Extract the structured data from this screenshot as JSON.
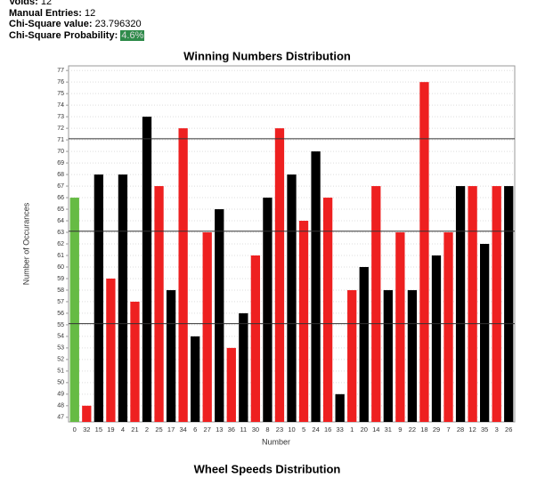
{
  "stats": [
    {
      "label": "Voids:",
      "value": "12"
    },
    {
      "label": "Manual Entries:",
      "value": "12"
    },
    {
      "label": "Chi-Square value:",
      "value": "23.796320"
    },
    {
      "label": "Chi-Square Probability:",
      "value": "4.6%"
    }
  ],
  "chart_data": {
    "type": "bar",
    "title": "Winning Numbers Distribution",
    "x_label": "Number",
    "y_label": "Number of Occurances",
    "categories": [
      "0",
      "32",
      "15",
      "19",
      "4",
      "21",
      "2",
      "25",
      "17",
      "34",
      "6",
      "27",
      "13",
      "36",
      "11",
      "30",
      "8",
      "23",
      "10",
      "5",
      "24",
      "16",
      "33",
      "1",
      "20",
      "14",
      "31",
      "9",
      "22",
      "18",
      "29",
      "7",
      "28",
      "12",
      "35",
      "3",
      "26"
    ],
    "values": [
      66,
      48,
      68,
      59,
      68,
      57,
      73,
      67,
      58,
      72,
      54,
      63,
      65,
      53,
      56,
      61,
      66,
      72,
      68,
      64,
      70,
      66,
      49,
      58,
      60,
      67,
      58,
      63,
      58,
      76,
      61,
      63,
      67,
      67,
      62,
      67,
      67
    ],
    "colors": [
      "#66bb44",
      "#ee2020",
      "#000000",
      "#ee2020",
      "#000000",
      "#ee2020",
      "#000000",
      "#ee2020",
      "#000000",
      "#ee2020",
      "#000000",
      "#ee2020",
      "#000000",
      "#ee2020",
      "#000000",
      "#ee2020",
      "#000000",
      "#ee2020",
      "#000000",
      "#ee2020",
      "#000000",
      "#ee2020",
      "#000000",
      "#ee2020",
      "#000000",
      "#ee2020",
      "#000000",
      "#ee2020",
      "#000000",
      "#ee2020",
      "#000000",
      "#ee2020",
      "#000000",
      "#ee2020",
      "#000000",
      "#ee2020",
      "#000000"
    ],
    "reference_lines": [
      71.1,
      63.1,
      55.1
    ],
    "ylim": [
      46.6,
      77.4
    ],
    "yticks": [
      47,
      48,
      49,
      50,
      51,
      52,
      53,
      54,
      55,
      56,
      57,
      58,
      59,
      60,
      61,
      62,
      63,
      64,
      65,
      66,
      67,
      68,
      69,
      70,
      71,
      72,
      73,
      74,
      75,
      76,
      77
    ],
    "grid": true
  },
  "footer_title": "Wheel Speeds Distribution"
}
